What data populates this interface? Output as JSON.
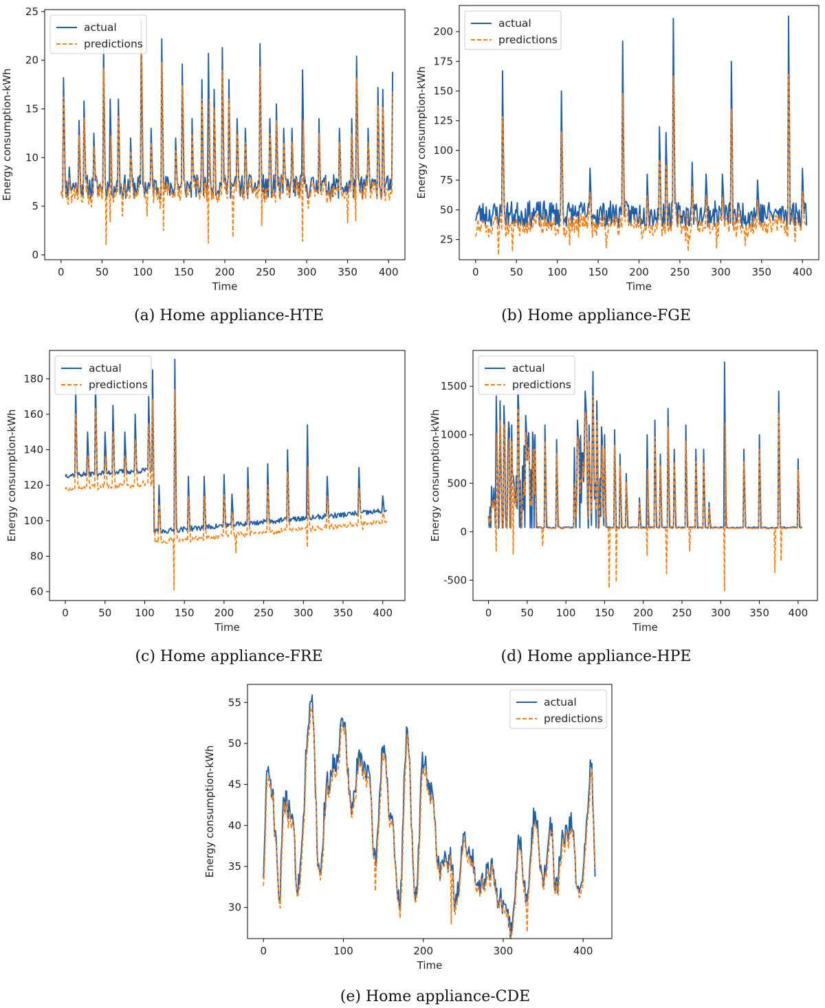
{
  "chart_data": [
    {
      "id": "a",
      "type": "line",
      "caption": "(a) Home appliance-HTE",
      "title": "",
      "xlabel": "Time",
      "ylabel": "Energy consumption-kWh",
      "xlim": [
        -20,
        420
      ],
      "ylim": [
        -0.5,
        25.2
      ],
      "xticks": [
        0,
        50,
        100,
        150,
        200,
        250,
        300,
        350,
        400
      ],
      "yticks": [
        0,
        5,
        10,
        15,
        20,
        25
      ],
      "legend_position": "top-left",
      "n_points": 406,
      "base": 6.5,
      "noise": 2.5,
      "floor": 5,
      "peaks": [
        [
          3,
          18.2
        ],
        [
          10,
          9
        ],
        [
          22,
          13.8
        ],
        [
          28,
          15.8
        ],
        [
          40,
          12.5
        ],
        [
          52,
          21.5
        ],
        [
          60,
          16
        ],
        [
          70,
          16
        ],
        [
          85,
          12
        ],
        [
          98,
          24.2
        ],
        [
          110,
          13
        ],
        [
          123,
          22.2
        ],
        [
          140,
          12
        ],
        [
          148,
          19.6
        ],
        [
          160,
          14
        ],
        [
          172,
          18
        ],
        [
          180,
          20.7
        ],
        [
          187,
          17
        ],
        [
          197,
          21.3
        ],
        [
          205,
          18
        ],
        [
          215,
          14
        ],
        [
          225,
          13
        ],
        [
          243,
          21.7
        ],
        [
          255,
          14
        ],
        [
          263,
          15.5
        ],
        [
          272,
          13
        ],
        [
          282,
          13
        ],
        [
          295,
          19
        ],
        [
          315,
          14
        ],
        [
          340,
          13
        ],
        [
          355,
          14
        ],
        [
          361,
          20.4
        ],
        [
          375,
          13
        ],
        [
          387,
          17.2
        ],
        [
          393,
          17
        ],
        [
          405,
          18.8
        ]
      ],
      "pred_dips": [
        [
          55,
          1
        ],
        [
          60,
          3.4
        ],
        [
          75,
          4
        ],
        [
          105,
          4
        ],
        [
          125,
          2.5
        ],
        [
          180,
          1.2
        ],
        [
          210,
          1.8
        ],
        [
          245,
          3
        ],
        [
          295,
          1.4
        ],
        [
          350,
          3.3
        ],
        [
          360,
          3.5
        ]
      ],
      "pred_scale": 0.92,
      "pred_clip_min": 0,
      "seed": 11,
      "series": [
        {
          "name": "actual",
          "color": "#1f5fa8",
          "style": "solid"
        },
        {
          "name": "predictions",
          "color": "#ff7f0e",
          "style": "dashed"
        }
      ]
    },
    {
      "id": "b",
      "type": "line",
      "caption": "(b) Home appliance-FGE",
      "title": "",
      "xlabel": "Time",
      "ylabel": "Energy consumption-kWh",
      "xlim": [
        -20,
        420
      ],
      "ylim": [
        8,
        222
      ],
      "xticks": [
        0,
        50,
        100,
        150,
        200,
        250,
        300,
        350,
        400
      ],
      "yticks": [
        25,
        50,
        75,
        100,
        125,
        150,
        175,
        200
      ],
      "legend_position": "top-left",
      "n_points": 406,
      "base": 42,
      "noise": 22,
      "floor": 18,
      "peaks": [
        [
          33,
          167
        ],
        [
          105,
          150
        ],
        [
          140,
          85
        ],
        [
          180,
          192
        ],
        [
          210,
          80
        ],
        [
          225,
          120
        ],
        [
          233,
          115
        ],
        [
          242,
          211
        ],
        [
          265,
          90
        ],
        [
          282,
          80
        ],
        [
          302,
          80
        ],
        [
          313,
          175
        ],
        [
          345,
          75
        ],
        [
          383,
          213
        ],
        [
          400,
          85
        ]
      ],
      "pred_dips": [
        [
          28,
          12
        ],
        [
          45,
          15
        ],
        [
          115,
          20
        ],
        [
          160,
          18
        ],
        [
          260,
          15
        ],
        [
          295,
          18
        ],
        [
          330,
          20
        ]
      ],
      "pred_scale": 0.8,
      "pred_clip_min": 10,
      "seed": 23,
      "series": [
        {
          "name": "actual",
          "color": "#1f5fa8",
          "style": "solid"
        },
        {
          "name": "predictions",
          "color": "#ff7f0e",
          "style": "dashed"
        }
      ]
    },
    {
      "id": "c",
      "type": "line",
      "caption": "(c) Home appliance-FRE",
      "title": "",
      "xlabel": "Time",
      "ylabel": "Energy consumption-kWh",
      "xlim": [
        -20,
        428
      ],
      "ylim": [
        55,
        196
      ],
      "xticks": [
        0,
        50,
        100,
        150,
        200,
        250,
        300,
        350,
        400
      ],
      "yticks": [
        60,
        80,
        100,
        120,
        140,
        160,
        180
      ],
      "legend_position": "top-left",
      "n_points": 406,
      "segments": [
        [
          0,
          110,
          125,
          128
        ],
        [
          111,
          405,
          93,
          105
        ]
      ],
      "noise": 3,
      "peaks": [
        [
          13,
          176
        ],
        [
          28,
          150
        ],
        [
          38,
          180
        ],
        [
          50,
          150
        ],
        [
          60,
          165
        ],
        [
          75,
          150
        ],
        [
          88,
          160
        ],
        [
          105,
          170
        ],
        [
          110,
          185
        ],
        [
          118,
          120
        ],
        [
          138,
          191
        ],
        [
          155,
          125
        ],
        [
          175,
          125
        ],
        [
          200,
          126
        ],
        [
          210,
          115
        ],
        [
          230,
          130
        ],
        [
          255,
          132
        ],
        [
          280,
          140
        ],
        [
          305,
          154
        ],
        [
          330,
          125
        ],
        [
          370,
          130
        ],
        [
          400,
          114
        ]
      ],
      "pred_dips": [
        [
          10,
          117
        ],
        [
          137,
          61
        ],
        [
          150,
          90
        ],
        [
          215,
          82
        ],
        [
          305,
          85
        ],
        [
          375,
          95
        ]
      ],
      "pred_scale": 0.94,
      "pred_clip_min": 55,
      "seed": 37,
      "series": [
        {
          "name": "actual",
          "color": "#1f5fa8",
          "style": "solid"
        },
        {
          "name": "predictions",
          "color": "#ff7f0e",
          "style": "dashed"
        }
      ]
    },
    {
      "id": "d",
      "type": "line",
      "caption": "(d) Home appliance-HPE",
      "title": "",
      "xlabel": "Time",
      "ylabel": "Energy consumption-kWh",
      "xlim": [
        -20,
        425
      ],
      "ylim": [
        -710,
        1870
      ],
      "xticks": [
        0,
        50,
        100,
        150,
        200,
        250,
        300,
        350,
        400
      ],
      "yticks": [
        -500,
        0,
        500,
        1000,
        1500
      ],
      "legend_position": "top-left",
      "n_points": 406,
      "base": 40,
      "noise": 15,
      "spiky_ranges": [
        [
          0,
          60,
          0.6
        ],
        [
          110,
          150,
          0.7
        ]
      ],
      "peaks": [
        [
          10,
          1400
        ],
        [
          15,
          1350
        ],
        [
          20,
          1300
        ],
        [
          30,
          1100
        ],
        [
          38,
          1500
        ],
        [
          48,
          1200
        ],
        [
          60,
          1000
        ],
        [
          73,
          1100
        ],
        [
          88,
          950
        ],
        [
          115,
          1150
        ],
        [
          125,
          1450
        ],
        [
          130,
          1100
        ],
        [
          135,
          1650
        ],
        [
          140,
          1350
        ],
        [
          150,
          1000
        ],
        [
          163,
          1050
        ],
        [
          170,
          800
        ],
        [
          178,
          600
        ],
        [
          195,
          350
        ],
        [
          205,
          1000
        ],
        [
          215,
          1150
        ],
        [
          222,
          800
        ],
        [
          232,
          1270
        ],
        [
          240,
          850
        ],
        [
          255,
          1100
        ],
        [
          268,
          850
        ],
        [
          278,
          850
        ],
        [
          285,
          300
        ],
        [
          305,
          1750
        ],
        [
          330,
          850
        ],
        [
          350,
          1000
        ],
        [
          375,
          1450
        ],
        [
          400,
          750
        ]
      ],
      "pred_dips": [
        [
          10,
          -200
        ],
        [
          32,
          -230
        ],
        [
          70,
          -150
        ],
        [
          156,
          -580
        ],
        [
          165,
          -520
        ],
        [
          205,
          -250
        ],
        [
          230,
          -430
        ],
        [
          260,
          -200
        ],
        [
          305,
          -610
        ],
        [
          370,
          -420
        ],
        [
          378,
          -300
        ]
      ],
      "pred_scale": 0.88,
      "pred_clip_min": -700,
      "seed": 53,
      "series": [
        {
          "name": "actual",
          "color": "#1f5fa8",
          "style": "solid"
        },
        {
          "name": "predictions",
          "color": "#ff7f0e",
          "style": "dashed"
        }
      ]
    },
    {
      "id": "e",
      "type": "line",
      "caption": "(e) Home appliance-CDE",
      "title": "",
      "xlabel": "Time",
      "ylabel": "Energy consumption-kWh",
      "xlim": [
        -20,
        436
      ],
      "ylim": [
        26.2,
        57.2
      ],
      "xticks": [
        0,
        100,
        200,
        300,
        400
      ],
      "yticks": [
        30,
        35,
        40,
        45,
        50,
        55
      ],
      "legend_position": "top-right",
      "n_points": 416,
      "smooth": true,
      "anchors": [
        [
          0,
          34.3
        ],
        [
          4,
          46
        ],
        [
          10,
          45
        ],
        [
          15,
          39
        ],
        [
          20,
          30.2
        ],
        [
          25,
          43
        ],
        [
          35,
          42
        ],
        [
          43,
          32
        ],
        [
          48,
          38
        ],
        [
          55,
          50
        ],
        [
          60,
          56.4
        ],
        [
          70,
          34
        ],
        [
          80,
          45
        ],
        [
          90,
          48
        ],
        [
          100,
          52.8
        ],
        [
          110,
          42
        ],
        [
          120,
          48
        ],
        [
          130,
          47
        ],
        [
          140,
          36
        ],
        [
          150,
          50
        ],
        [
          160,
          40
        ],
        [
          170,
          30.5
        ],
        [
          180,
          51.8
        ],
        [
          190,
          30.7
        ],
        [
          200,
          48
        ],
        [
          210,
          44
        ],
        [
          220,
          35
        ],
        [
          235,
          36
        ],
        [
          240,
          30
        ],
        [
          250,
          38
        ],
        [
          260,
          36
        ],
        [
          270,
          33
        ],
        [
          285,
          35
        ],
        [
          295,
          31
        ],
        [
          305,
          29
        ],
        [
          310,
          27
        ],
        [
          320,
          38
        ],
        [
          330,
          31
        ],
        [
          340,
          42
        ],
        [
          350,
          33
        ],
        [
          360,
          40
        ],
        [
          365,
          32
        ],
        [
          375,
          38
        ],
        [
          385,
          40
        ],
        [
          395,
          31
        ],
        [
          405,
          40
        ],
        [
          410,
          47.9
        ],
        [
          416,
          33
        ]
      ],
      "noise": 1.6,
      "pred_dips": [
        [
          235,
          28
        ],
        [
          330,
          27
        ],
        [
          140,
          32
        ]
      ],
      "pred_scale": 0.98,
      "pred_clip_min": 26,
      "seed": 71,
      "series": [
        {
          "name": "actual",
          "color": "#1f5fa8",
          "style": "solid"
        },
        {
          "name": "predictions",
          "color": "#ff7f0e",
          "style": "dashed"
        }
      ]
    }
  ]
}
